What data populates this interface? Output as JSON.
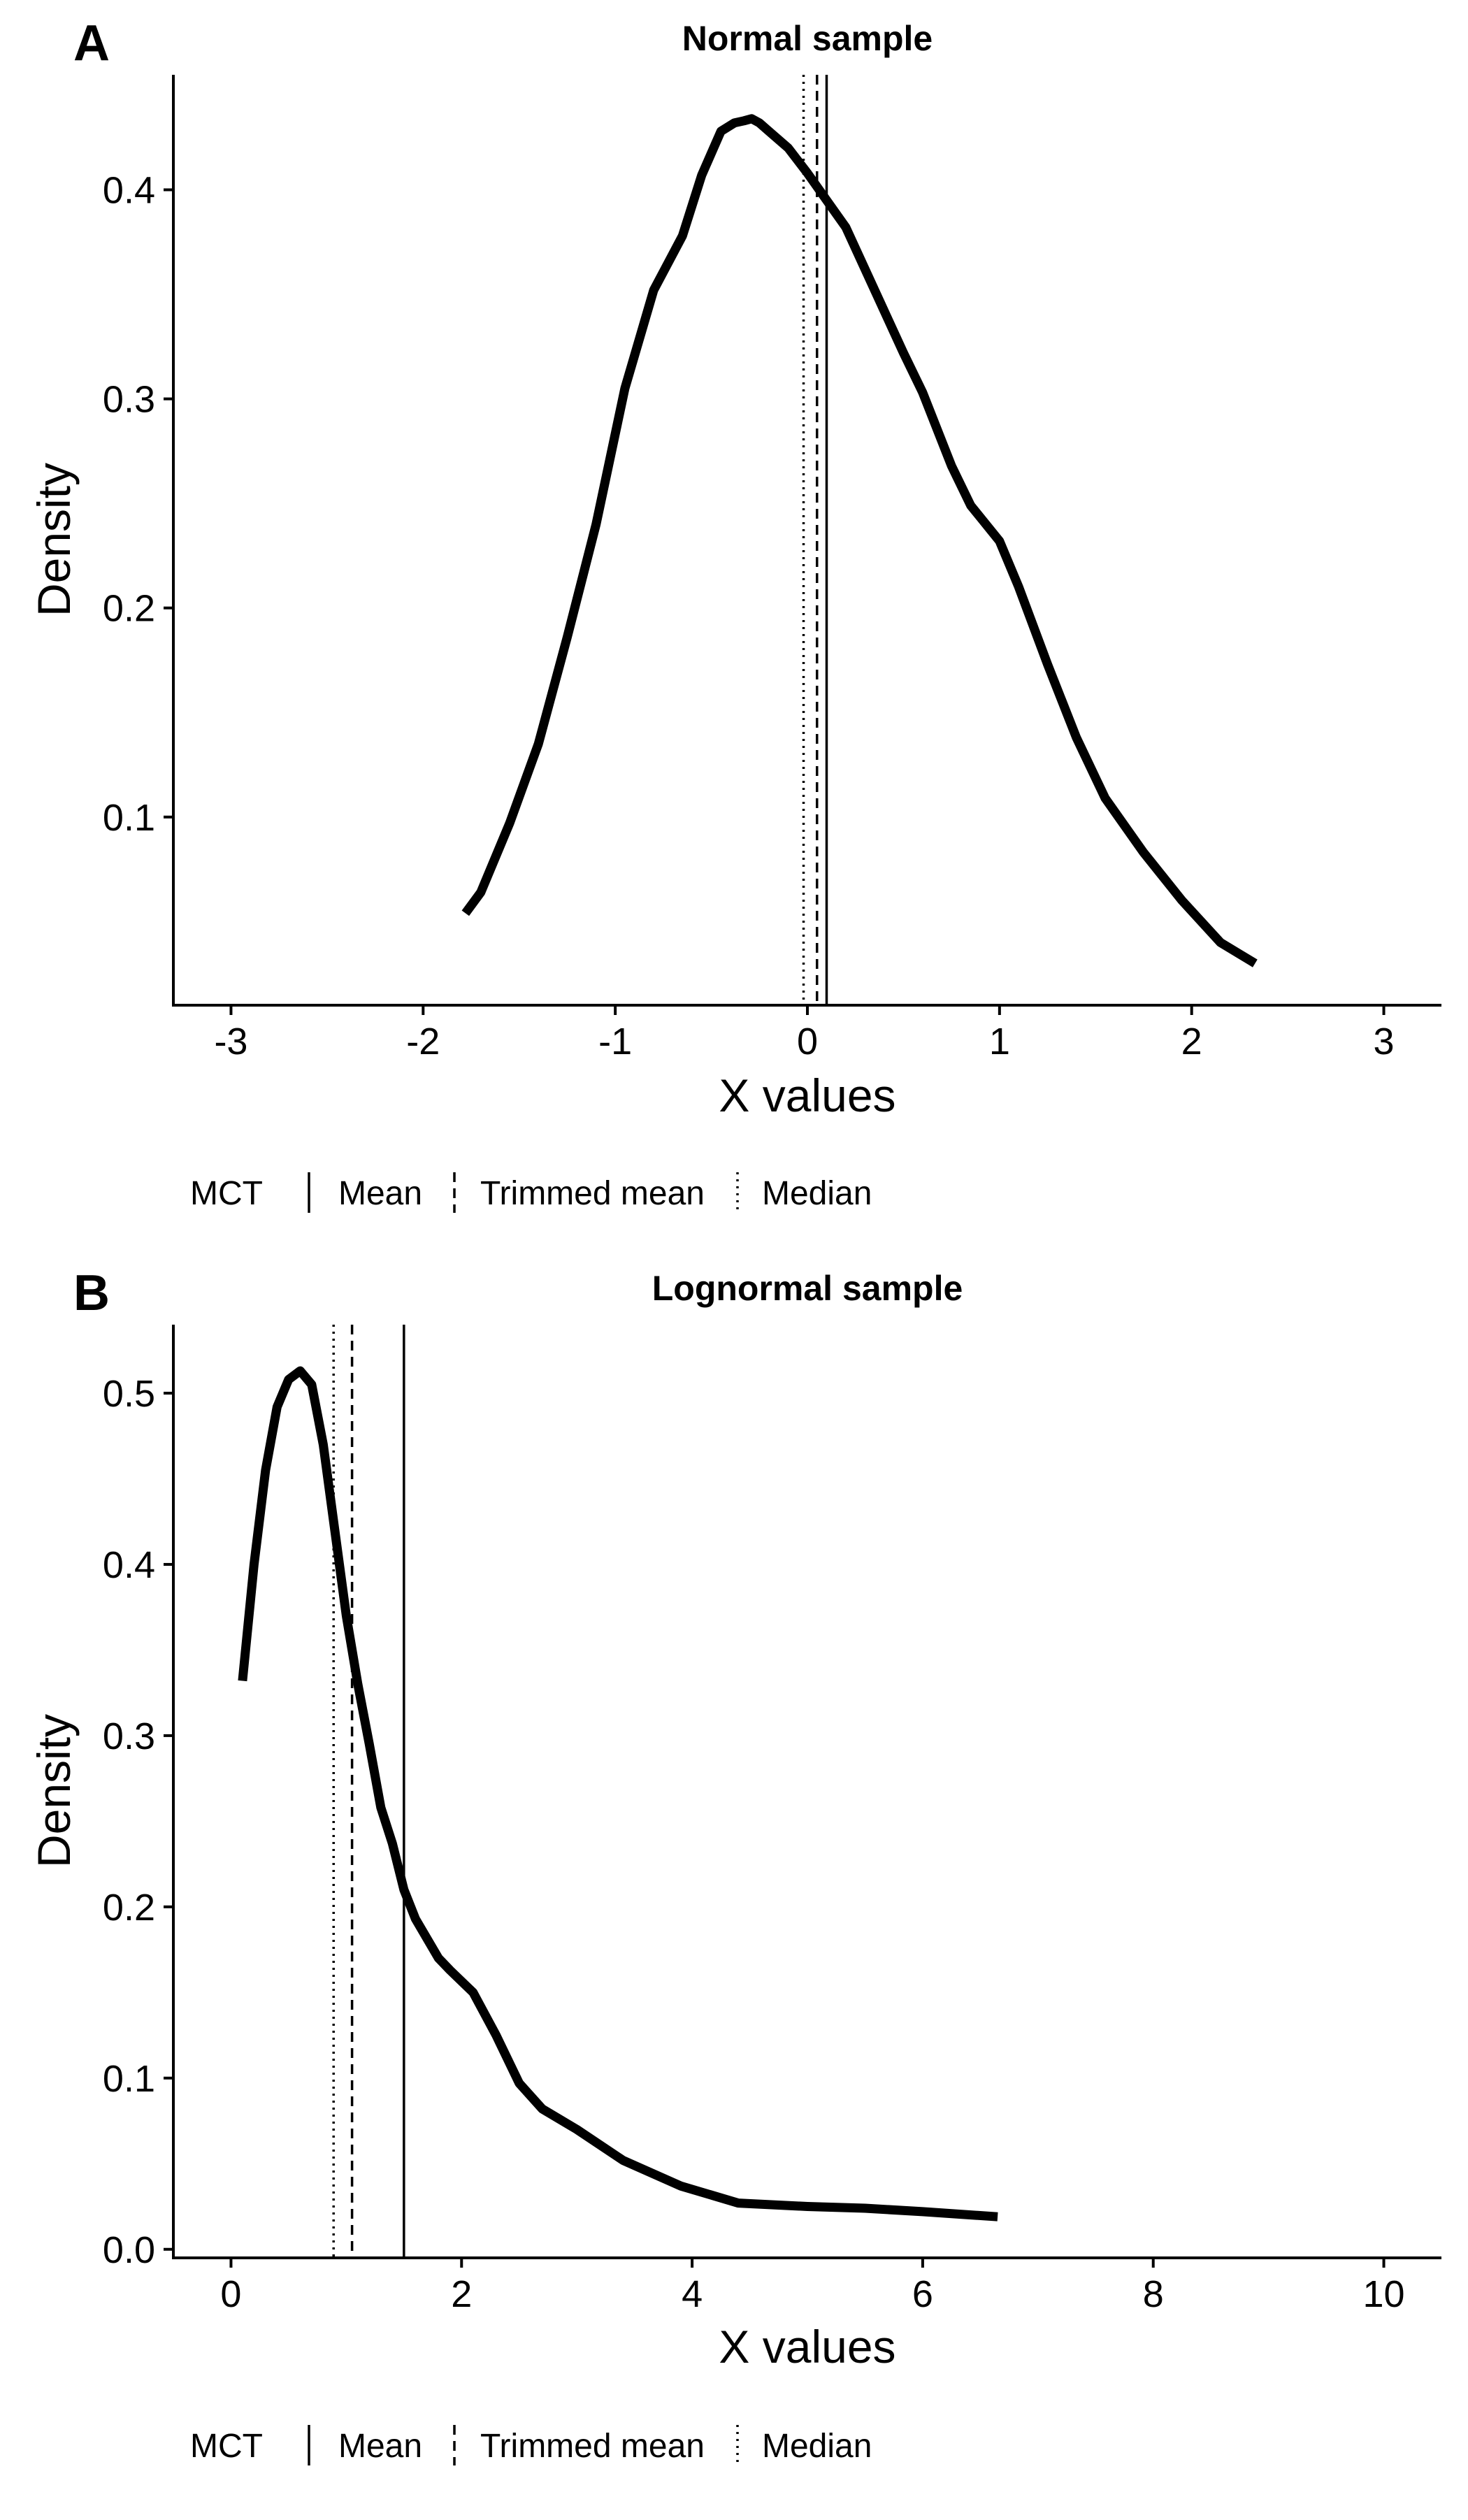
{
  "chart_data": [
    {
      "panel": "A",
      "type": "line",
      "title": "Normal sample",
      "xlabel": "X values",
      "ylabel": "Density",
      "xlim": [
        -3.3,
        3.3
      ],
      "ylim": [
        0.01,
        0.455
      ],
      "xticks": [
        -3,
        -2,
        -1,
        0,
        1,
        2,
        3
      ],
      "xtick_labels": [
        "-3",
        "-2",
        "-1",
        "0",
        "1",
        "2",
        "3"
      ],
      "yticks": [
        0.1,
        0.2,
        0.3,
        0.4
      ],
      "ytick_labels": [
        "0.1",
        "0.2",
        "0.3",
        "0.4"
      ],
      "grid": false,
      "legend_position": "bottom-left",
      "series": [
        {
          "x": [
            -1.78,
            -1.7,
            -1.55,
            -1.4,
            -1.25,
            -1.1,
            -0.95,
            -0.8,
            -0.65,
            -0.55,
            -0.45,
            -0.38,
            -0.33,
            -0.29,
            -0.25,
            -0.2,
            -0.1,
            0.0,
            0.1,
            0.2,
            0.35,
            0.5,
            0.6,
            0.75,
            0.85,
            1.0,
            1.1,
            1.25,
            1.4,
            1.55,
            1.75,
            1.95,
            2.15,
            2.33
          ],
          "y": [
            0.054,
            0.064,
            0.097,
            0.135,
            0.186,
            0.24,
            0.305,
            0.352,
            0.378,
            0.407,
            0.428,
            0.432,
            0.433,
            0.434,
            0.432,
            0.428,
            0.42,
            0.408,
            0.395,
            0.382,
            0.352,
            0.322,
            0.303,
            0.268,
            0.249,
            0.232,
            0.21,
            0.173,
            0.138,
            0.109,
            0.083,
            0.06,
            0.04,
            0.03
          ]
        }
      ],
      "reference_lines": [
        {
          "label": "Mean",
          "x": 0.1,
          "style": "solid"
        },
        {
          "label": "Trimmed mean",
          "x": 0.05,
          "style": "dashed"
        },
        {
          "label": "Median",
          "x": -0.02,
          "style": "dotted"
        }
      ],
      "legend": {
        "title": "MCT",
        "items": [
          {
            "label": "Mean",
            "style": "solid"
          },
          {
            "label": "Trimmed mean",
            "style": "dashed"
          },
          {
            "label": "Median",
            "style": "dotted"
          }
        ]
      }
    },
    {
      "panel": "B",
      "type": "line",
      "title": "Lognormal sample",
      "xlabel": "X values",
      "ylabel": "Density",
      "xlim": [
        -0.5,
        10.5
      ],
      "ylim": [
        -0.005,
        0.54
      ],
      "xticks": [
        0,
        2,
        4,
        6,
        8,
        10
      ],
      "xtick_labels": [
        "0",
        "2",
        "4",
        "6",
        "8",
        "10"
      ],
      "yticks": [
        0.0,
        0.1,
        0.2,
        0.3,
        0.4,
        0.5
      ],
      "ytick_labels": [
        "0.0",
        "0.1",
        "0.2",
        "0.3",
        "0.4",
        "0.5"
      ],
      "grid": false,
      "legend_position": "bottom-left",
      "series": [
        {
          "x": [
            0.1,
            0.2,
            0.3,
            0.4,
            0.5,
            0.6,
            0.7,
            0.8,
            0.9,
            1.0,
            1.1,
            1.2,
            1.3,
            1.4,
            1.5,
            1.6,
            1.8,
            1.9,
            2.1,
            2.3,
            2.5,
            2.7,
            3.0,
            3.4,
            3.9,
            4.4,
            5.0,
            5.5,
            6.0,
            6.65
          ],
          "y": [
            0.332,
            0.4,
            0.455,
            0.492,
            0.508,
            0.513,
            0.505,
            0.47,
            0.42,
            0.37,
            0.33,
            0.295,
            0.258,
            0.237,
            0.21,
            0.193,
            0.17,
            0.163,
            0.15,
            0.125,
            0.097,
            0.082,
            0.07,
            0.052,
            0.037,
            0.027,
            0.025,
            0.024,
            0.022,
            0.019
          ]
        }
      ],
      "reference_lines": [
        {
          "label": "Mean",
          "x": 1.5,
          "style": "solid"
        },
        {
          "label": "Trimmed mean",
          "x": 1.05,
          "style": "dashed"
        },
        {
          "label": "Median",
          "x": 0.89,
          "style": "dotted"
        }
      ],
      "legend": {
        "title": "MCT",
        "items": [
          {
            "label": "Mean",
            "style": "solid"
          },
          {
            "label": "Trimmed mean",
            "style": "dashed"
          },
          {
            "label": "Median",
            "style": "dotted"
          }
        ]
      }
    }
  ]
}
